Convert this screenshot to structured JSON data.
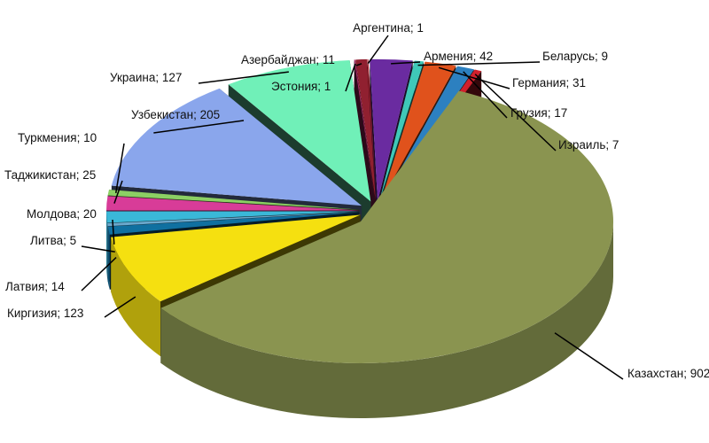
{
  "chart_data": {
    "type": "pie",
    "three_d": true,
    "exploded": true,
    "legend": "none",
    "slices": [
      {
        "label": "Argentina",
        "display": "Аргентина; 1",
        "value": 1,
        "color": "#b02030"
      },
      {
        "label": "Armenia",
        "display": "Армения; 42",
        "value": 42,
        "color": "#6a2ba0"
      },
      {
        "label": "Belarus",
        "display": "Беларусь; 9",
        "value": 9,
        "color": "#3fc8b8"
      },
      {
        "label": "Germany",
        "display": "Германия; 31",
        "value": 31,
        "color": "#e0521c"
      },
      {
        "label": "Georgia",
        "display": "Грузия; 17",
        "value": 17,
        "color": "#2c80c0"
      },
      {
        "label": "Israel",
        "display": "Израиль; 7",
        "value": 7,
        "color": "#d0202c"
      },
      {
        "label": "Kazakhstan",
        "display": "Казахстан; 902",
        "value": 902,
        "color": "#8a9450"
      },
      {
        "label": "Kyrgyzstan",
        "display": "Киргизия; 123",
        "value": 123,
        "color": "#f5e010"
      },
      {
        "label": "Latvia",
        "display": "Латвия; 14",
        "value": 14,
        "color": "#1070a0"
      },
      {
        "label": "Lithuania",
        "display": "Литва; 5",
        "value": 5,
        "color": "#6aa8cc"
      },
      {
        "label": "Moldova",
        "display": "Молдова; 20",
        "value": 20,
        "color": "#3ab8d8"
      },
      {
        "label": "Tajikistan",
        "display": "Таджикистан; 25",
        "value": 25,
        "color": "#d83c98"
      },
      {
        "label": "Turkmenia",
        "display": "Туркмения; 10",
        "value": 10,
        "color": "#8cd064"
      },
      {
        "label": "Uzbekistan",
        "display": "Узбекистан; 205",
        "value": 205,
        "color": "#8aa6ec"
      },
      {
        "label": "Ukraine",
        "display": "Украина; 127",
        "value": 127,
        "color": "#70f0b8"
      },
      {
        "label": "Estonia",
        "display": "Эстония; 1",
        "value": 1,
        "color": "#b02868"
      },
      {
        "label": "Azerbaijan",
        "display": "Азербайджан; 11",
        "value": 11,
        "color": "#902030"
      }
    ]
  }
}
